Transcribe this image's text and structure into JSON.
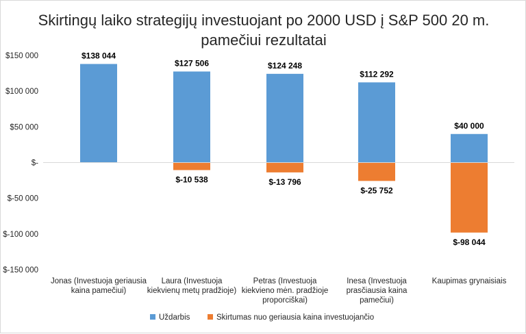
{
  "chart_data": {
    "type": "bar",
    "stacked": true,
    "title_lines": [
      "Skirtingų laiko strategijų investuojant po 2000 USD į S&P 500 20 m.",
      "pamečiui rezultatai"
    ],
    "categories": [
      [
        "Jonas (Investuoja geriausia",
        "kaina pamečiui)"
      ],
      [
        "Laura (Investuoja",
        "kiekvienų metų pradžioje)"
      ],
      [
        "Petras (Investuoja",
        "kiekvieno mėn. pradžioje",
        "proporciškai)"
      ],
      [
        "Inesa (Investuoja",
        "prasčiausia kaina",
        "pamečiui)"
      ],
      [
        "Kaupimas grynaisiais"
      ]
    ],
    "series": [
      {
        "name": "Uždarbis",
        "color": "#5b9bd5",
        "values": [
          138044,
          127506,
          124248,
          112292,
          40000
        ],
        "labels": [
          "$138 044",
          "$127 506",
          "$124 248",
          "$112 292",
          "$40 000"
        ]
      },
      {
        "name": "Skirtumas nuo geriausia kaina investuojančio",
        "color": "#ed7d31",
        "values": [
          0,
          -10538,
          -13796,
          -25752,
          -98044
        ],
        "labels": [
          "",
          "$-10 538",
          "$-13 796",
          "$-25 752",
          "$-98 044"
        ]
      }
    ],
    "ylim": [
      -150000,
      150000
    ],
    "yticks": [
      150000,
      100000,
      50000,
      0,
      -50000,
      -100000,
      -150000
    ],
    "ytick_labels": [
      "$150 000",
      "$100 000",
      "$50 000",
      "$-",
      "$-50 000",
      "$-100 000",
      "$-150 000"
    ],
    "legend_position": "bottom",
    "grid": false
  }
}
